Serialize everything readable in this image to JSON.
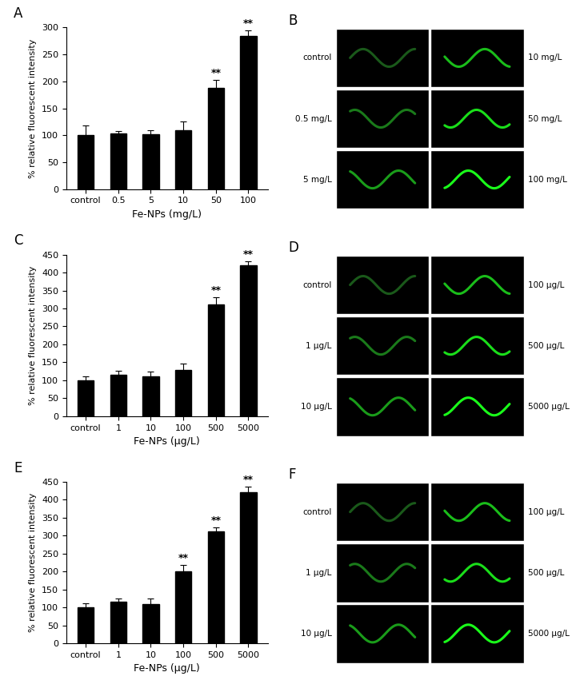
{
  "chart_data": [
    {
      "type": "bar",
      "title": "A",
      "x_label": "Fe-NPs (mg/L)",
      "y_label": "% relative fluorescent intensity",
      "categories": [
        "control",
        "0.5",
        "5",
        "10",
        "50",
        "100"
      ],
      "values": [
        100,
        103,
        102,
        110,
        188,
        285
      ],
      "errors": [
        18,
        5,
        7,
        15,
        15,
        10
      ],
      "significance": [
        null,
        null,
        null,
        null,
        "**",
        "**"
      ],
      "color": "#000000",
      "ylim": [
        0,
        300
      ],
      "yticks": [
        0,
        50,
        100,
        150,
        200,
        250,
        300
      ],
      "grid": false
    },
    {
      "type": "bar",
      "title": "C",
      "x_label": "Fe-NPs (μg/L)",
      "y_label": "% relative fluorescent intensity",
      "categories": [
        "control",
        "1",
        "10",
        "100",
        "500",
        "5000"
      ],
      "values": [
        100,
        115,
        110,
        128,
        312,
        420
      ],
      "errors": [
        12,
        12,
        15,
        18,
        20,
        12
      ],
      "significance": [
        null,
        null,
        null,
        null,
        "**",
        "**"
      ],
      "color": "#000000",
      "ylim": [
        0,
        450
      ],
      "yticks": [
        0,
        50,
        100,
        150,
        200,
        250,
        300,
        350,
        400,
        450
      ],
      "grid": false
    },
    {
      "type": "bar",
      "title": "E",
      "x_label": "Fe-NPs (μg/L)",
      "y_label": "% relative fluorescent intensity",
      "categories": [
        "control",
        "1",
        "10",
        "100",
        "500",
        "5000"
      ],
      "values": [
        100,
        115,
        110,
        200,
        312,
        420
      ],
      "errors": [
        12,
        10,
        15,
        18,
        10,
        15
      ],
      "significance": [
        null,
        null,
        null,
        "**",
        "**",
        "**"
      ],
      "color": "#000000",
      "ylim": [
        0,
        450
      ],
      "yticks": [
        0,
        50,
        100,
        150,
        200,
        250,
        300,
        350,
        400,
        450
      ],
      "grid": false
    }
  ],
  "images": [
    {
      "panel": "B",
      "labels": [
        "control",
        "0.5 mg/L",
        "5 mg/L",
        "10 mg/L",
        "50 mg/L",
        "100 mg/L"
      ]
    },
    {
      "panel": "D",
      "labels": [
        "control",
        "1 μg/L",
        "10 μg/L",
        "100 μg/L",
        "500 μg/L",
        "5000 μg/L"
      ]
    },
    {
      "panel": "F",
      "labels": [
        "control",
        "1 μg/L",
        "10 μg/L",
        "100 μg/L",
        "500 μg/L",
        "5000 μg/L"
      ]
    }
  ]
}
